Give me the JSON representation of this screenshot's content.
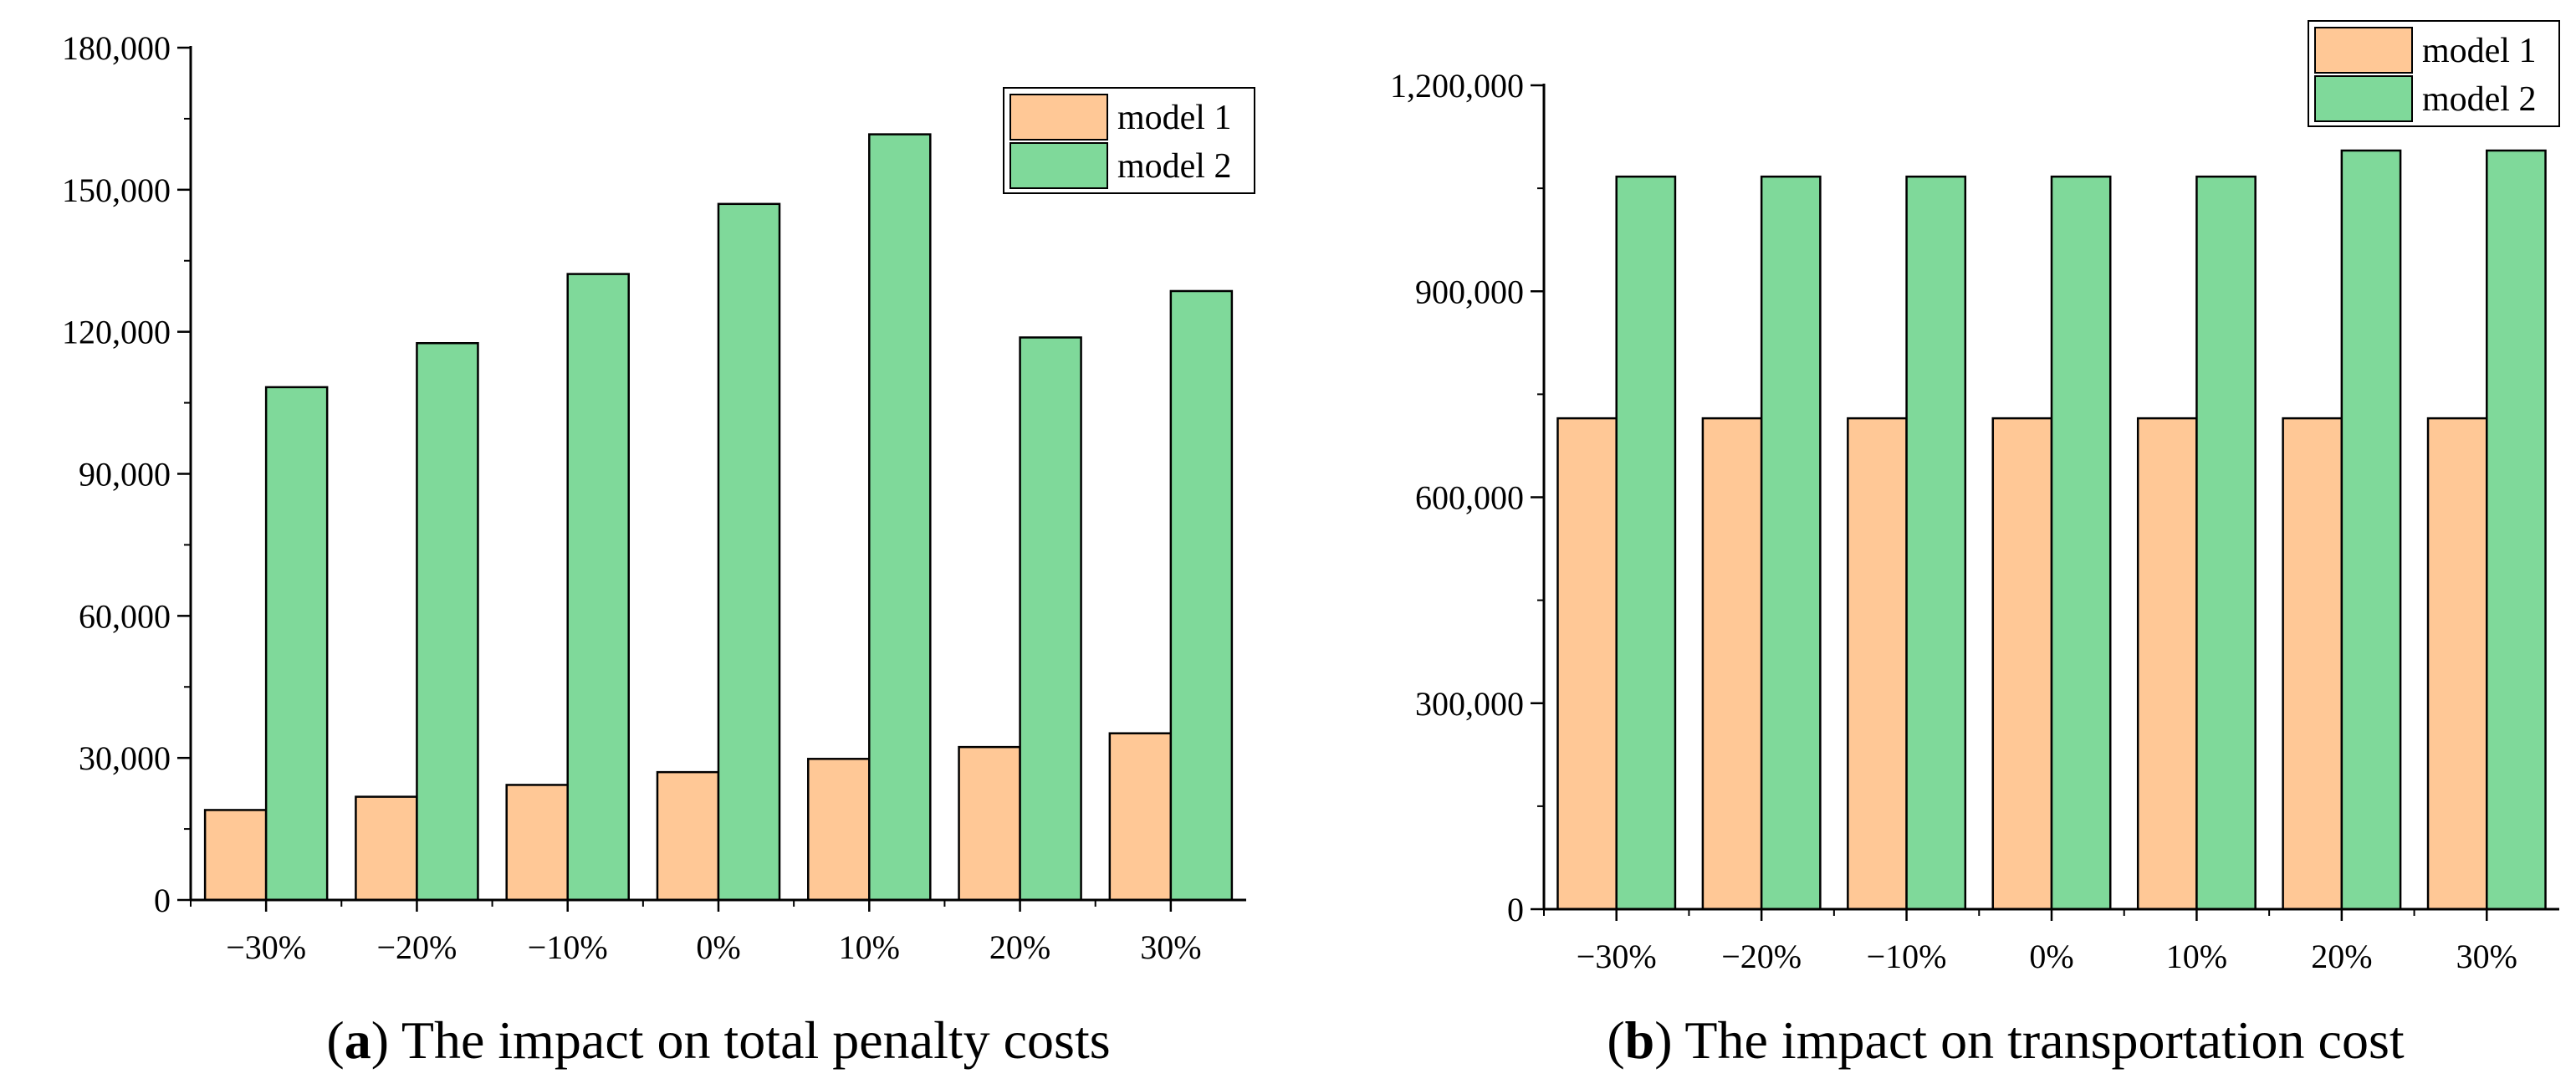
{
  "chart_data": [
    {
      "type": "bar",
      "caption_letter": "a",
      "caption_text": "The impact on total penalty costs",
      "categories": [
        "−30%",
        "−20%",
        "−10%",
        "0%",
        "10%",
        "20%",
        "30%"
      ],
      "series": [
        {
          "name": "model 1",
          "color": "#FFC896",
          "values": [
            19000,
            21800,
            24300,
            27000,
            29800,
            32300,
            35200
          ]
        },
        {
          "name": "model 2",
          "color": "#7FD99A",
          "values": [
            108300,
            117600,
            132200,
            147000,
            161700,
            118800,
            128600
          ]
        }
      ],
      "ylim": [
        0,
        180000
      ],
      "yticks": [
        0,
        30000,
        60000,
        90000,
        120000,
        150000,
        180000
      ],
      "ytick_labels": [
        "0",
        "30,000",
        "60,000",
        "90,000",
        "120,000",
        "150,000",
        "180,000"
      ],
      "xlabel": "",
      "ylabel": "",
      "legend_position": "top-right"
    },
    {
      "type": "bar",
      "caption_letter": "b",
      "caption_text": "The impact on transportation cost",
      "categories": [
        "−30%",
        "−20%",
        "−10%",
        "0%",
        "10%",
        "20%",
        "30%"
      ],
      "series": [
        {
          "name": "model 1",
          "color": "#FFC896",
          "values": [
            715000,
            715000,
            715000,
            715000,
            715000,
            715000,
            715000
          ]
        },
        {
          "name": "model 2",
          "color": "#7FD99A",
          "values": [
            1067000,
            1067000,
            1067000,
            1067000,
            1067000,
            1105000,
            1105000
          ]
        }
      ],
      "ylim": [
        0,
        1200000
      ],
      "yticks": [
        0,
        300000,
        600000,
        900000,
        1200000
      ],
      "ytick_labels": [
        "0",
        "300,000",
        "600,000",
        "900,000",
        "1,200,000"
      ],
      "xlabel": "",
      "ylabel": "",
      "legend_position": "top-right"
    }
  ]
}
